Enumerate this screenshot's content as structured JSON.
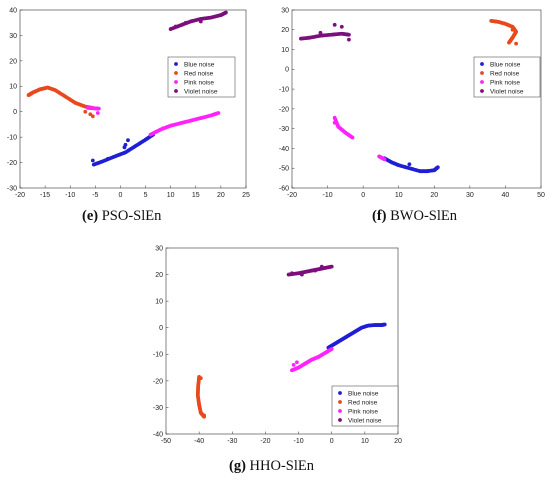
{
  "legend": {
    "position": "upper-right",
    "colors": [
      "#1f1fd6",
      "#e8491d",
      "#ff22ff",
      "#7d0f7d"
    ]
  },
  "chart_data": [
    {
      "panel": "e",
      "type": "scatter",
      "caption_letter": "(e)",
      "caption_text": "PSO-SlEn",
      "xlim": [
        -20,
        25
      ],
      "ylim": [
        -30,
        40
      ],
      "xticks": [
        -20,
        -15,
        -10,
        -5,
        0,
        5,
        10,
        15,
        20,
        25
      ],
      "yticks": [
        -30,
        -20,
        -10,
        0,
        10,
        20,
        30,
        40
      ],
      "series": [
        {
          "name": "Blue noise",
          "curves": [
            [
              [
                -5.3,
                -20.8
              ],
              [
                -3.5,
                -19.5
              ],
              [
                -1,
                -17.5
              ],
              [
                1,
                -16
              ],
              [
                3,
                -13.5
              ],
              [
                5,
                -11
              ],
              [
                6.5,
                -9
              ]
            ]
          ],
          "extra": [
            [
              -5.5,
              -19.2
            ],
            [
              1,
              -13
            ],
            [
              1.5,
              -11.2
            ],
            [
              0.8,
              -14
            ],
            [
              -2.5,
              -18.5
            ]
          ]
        },
        {
          "name": "Red noise",
          "curves": [
            [
              [
                -18.3,
                6.5
              ],
              [
                -17.5,
                7.5
              ],
              [
                -16,
                8.8
              ],
              [
                -14.5,
                9.5
              ],
              [
                -13,
                8.5
              ],
              [
                -11,
                6
              ],
              [
                -9,
                3.5
              ],
              [
                -7,
                2
              ],
              [
                -5.5,
                1.5
              ]
            ]
          ],
          "extra": [
            [
              -6,
              -1
            ],
            [
              -5.5,
              -1.8
            ],
            [
              -7,
              0
            ]
          ]
        },
        {
          "name": "Pink noise",
          "curves": [
            [
              [
                -6.5,
                1.5
              ],
              [
                -5,
                1.3
              ],
              [
                -4.3,
                1.2
              ]
            ],
            [
              [
                6,
                -9
              ],
              [
                8,
                -7
              ],
              [
                10,
                -5.5
              ],
              [
                12,
                -4.5
              ],
              [
                14,
                -3.5
              ],
              [
                16,
                -2.5
              ],
              [
                18,
                -1.5
              ],
              [
                19.5,
                -0.5
              ]
            ]
          ],
          "extra": [
            [
              -4.5,
              -0.5
            ],
            [
              8.5,
              -6.5
            ]
          ]
        },
        {
          "name": "Violet noise",
          "curves": [
            [
              [
                10,
                32.5
              ],
              [
                12,
                34
              ],
              [
                14,
                35.5
              ],
              [
                16,
                36.5
              ],
              [
                18,
                37
              ],
              [
                20,
                38
              ],
              [
                21,
                39
              ]
            ]
          ],
          "extra": [
            [
              11,
              33.5
            ],
            [
              13,
              35
            ],
            [
              16,
              35.5
            ]
          ]
        }
      ]
    },
    {
      "panel": "f",
      "type": "scatter",
      "caption_letter": "(f)",
      "caption_text": "BWO-SlEn",
      "xlim": [
        -20,
        50
      ],
      "ylim": [
        -60,
        30
      ],
      "xticks": [
        -20,
        -10,
        0,
        10,
        20,
        30,
        40,
        50
      ],
      "yticks": [
        -60,
        -50,
        -40,
        -30,
        -20,
        -10,
        0,
        10,
        20,
        30
      ],
      "series": [
        {
          "name": "Blue noise",
          "curves": [
            [
              [
                6,
                -45
              ],
              [
                8,
                -47
              ],
              [
                10,
                -48.5
              ],
              [
                13,
                -50
              ],
              [
                16,
                -51.5
              ],
              [
                18,
                -51.5
              ],
              [
                20,
                -51
              ],
              [
                21,
                -49.5
              ]
            ]
          ],
          "extra": [
            [
              13,
              -48
            ]
          ]
        },
        {
          "name": "Red noise",
          "curves": [
            [
              [
                36,
                24.5
              ],
              [
                38,
                24
              ],
              [
                40,
                23
              ],
              [
                42,
                21.5
              ],
              [
                43,
                19
              ],
              [
                42,
                16
              ],
              [
                41,
                13.5
              ]
            ]
          ],
          "extra": [
            [
              43,
              13
            ],
            [
              42,
              20
            ]
          ]
        },
        {
          "name": "Pink noise",
          "curves": [
            [
              [
                -8,
                -24.5
              ],
              [
                -7,
                -29
              ],
              [
                -5,
                -32
              ],
              [
                -3,
                -34.5
              ]
            ],
            [
              [
                4.5,
                -44
              ],
              [
                6,
                -45.5
              ]
            ]
          ],
          "extra": [
            [
              -8,
              -27
            ]
          ]
        },
        {
          "name": "Violet noise",
          "curves": [
            [
              [
                -17.5,
                15.5
              ],
              [
                -15,
                16
              ],
              [
                -12,
                17
              ],
              [
                -9,
                17.5
              ],
              [
                -6,
                18
              ],
              [
                -4,
                17.5
              ]
            ]
          ],
          "extra": [
            [
              -8,
              22.5
            ],
            [
              -6,
              21.5
            ],
            [
              -12,
              18.5
            ],
            [
              -4,
              15
            ]
          ]
        }
      ]
    },
    {
      "panel": "g",
      "type": "scatter",
      "caption_letter": "(g)",
      "caption_text": "HHO-SlEn",
      "xlim": [
        -50,
        20
      ],
      "ylim": [
        -40,
        30
      ],
      "xticks": [
        -50,
        -40,
        -30,
        -20,
        -10,
        0,
        10,
        20
      ],
      "yticks": [
        -40,
        -30,
        -20,
        -10,
        0,
        10,
        20,
        30
      ],
      "series": [
        {
          "name": "Blue noise",
          "curves": [
            [
              [
                -1,
                -7.5
              ],
              [
                1,
                -6
              ],
              [
                3,
                -4.5
              ],
              [
                5,
                -3
              ],
              [
                7,
                -1.5
              ],
              [
                9,
                0
              ],
              [
                11,
                0.8
              ],
              [
                13,
                1
              ],
              [
                15,
                1
              ],
              [
                16,
                1.2
              ]
            ]
          ],
          "extra": []
        },
        {
          "name": "Red noise",
          "curves": [
            [
              [
                -40,
                -18.5
              ],
              [
                -40.3,
                -22
              ],
              [
                -40.4,
                -25.5
              ],
              [
                -40,
                -29
              ],
              [
                -39.5,
                -32
              ],
              [
                -38.5,
                -33.5
              ]
            ]
          ],
          "extra": [
            [
              -39.5,
              -19
            ],
            [
              -38.5,
              -33
            ]
          ]
        },
        {
          "name": "Pink noise",
          "curves": [
            [
              [
                -12,
                -16
              ],
              [
                -10,
                -15
              ],
              [
                -8,
                -13.5
              ],
              [
                -6,
                -12
              ],
              [
                -4,
                -11
              ],
              [
                -2,
                -9.5
              ],
              [
                0,
                -8
              ]
            ]
          ],
          "extra": [
            [
              -11.5,
              -14
            ],
            [
              -10.5,
              -13
            ]
          ]
        },
        {
          "name": "Violet noise",
          "curves": [
            [
              [
                -13,
                20
              ],
              [
                -10,
                20.5
              ],
              [
                -8,
                21
              ],
              [
                -6,
                21.5
              ],
              [
                -4,
                22
              ],
              [
                -2,
                22.5
              ],
              [
                0,
                23
              ]
            ]
          ],
          "extra": [
            [
              -12,
              20.5
            ],
            [
              -9,
              20
            ],
            [
              -5,
              21.5
            ],
            [
              -3,
              23
            ]
          ]
        }
      ]
    }
  ]
}
